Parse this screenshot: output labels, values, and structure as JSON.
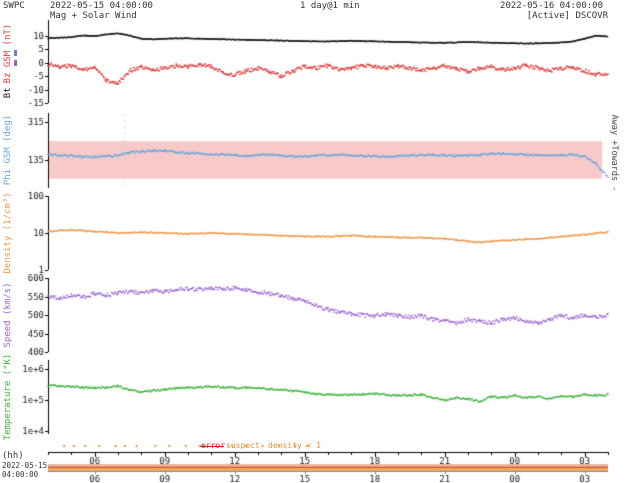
{
  "header": {
    "source": "SWPC",
    "start_time": "2022-05-15 04:00:00",
    "resolution": "1 day@1 min",
    "end_time": "2022-05-16 04:00:00",
    "product": "Mag + Solar Wind",
    "satellite": "[Active] DSCOVR"
  },
  "x_axis": {
    "label": "(hh)",
    "ticks": [
      "06",
      "09",
      "12",
      "15",
      "18",
      "21",
      "00",
      "03"
    ],
    "hours": [
      6,
      9,
      12,
      15,
      18,
      21,
      24,
      27
    ],
    "range_hours": [
      4,
      28
    ]
  },
  "footer": {
    "date": "2022-05-15",
    "time": "04:00:00"
  },
  "flags": {
    "color": "#e8912f",
    "hours": [
      4.7,
      5.1,
      5.6,
      6.2,
      6.9,
      7.3,
      7.8,
      8.6,
      9.2,
      9.9,
      10.5,
      11.2,
      11.9,
      12.5,
      13.2,
      13.9,
      14.6,
      15.1
    ],
    "legend": [
      {
        "label": "error",
        "color": "#cc2222"
      },
      {
        "label": "suspect",
        "color": "#e8912f"
      },
      {
        "label": "density < 1",
        "color": "#e8912f"
      }
    ]
  },
  "panel1_markers": [
    {
      "name": "by",
      "color": "#6b7fd7"
    },
    {
      "name": "bx",
      "color": "#b05fb0"
    }
  ],
  "chart_data": [
    {
      "type": "scatter",
      "panel": "magnetic-field",
      "label_bt": "Bt",
      "label_bz": "Bz GSM (nT)",
      "yscale": "linear",
      "ylim": [
        -15,
        16
      ],
      "yticks": [
        {
          "v": 10,
          "label": "10"
        },
        {
          "v": 5,
          "label": "5"
        },
        {
          "v": 0,
          "label": "0"
        },
        {
          "v": -5,
          "label": "-5"
        },
        {
          "v": -10,
          "label": "-10"
        },
        {
          "v": -15,
          "label": "-15"
        }
      ],
      "series": [
        {
          "name": "Bt",
          "color": "#1a1a1a",
          "start": 4,
          "step_h": 0.5,
          "jitter": 0.15,
          "size": 1.2,
          "substep": 0.0167,
          "values": [
            9.2,
            9.4,
            9.6,
            10.2,
            10.0,
            10.6,
            11.0,
            10.2,
            9.0,
            8.8,
            9.0,
            9.1,
            9.2,
            9.0,
            8.9,
            8.8,
            8.7,
            8.6,
            8.5,
            8.4,
            8.3,
            8.2,
            8.1,
            8.0,
            8.0,
            8.1,
            8.2,
            8.1,
            8.0,
            7.9,
            7.8,
            7.7,
            7.6,
            7.5,
            7.5,
            7.6,
            7.8,
            7.7,
            7.5,
            7.4,
            7.3,
            7.2,
            7.3,
            7.4,
            7.6,
            8.0,
            9.0,
            10.2,
            9.8
          ]
        },
        {
          "name": "Bz",
          "color": "#e03a3a",
          "start": 4,
          "step_h": 0.5,
          "jitter": 0.7,
          "size": 1.6,
          "substep": 0.045,
          "values": [
            -0.5,
            -1.5,
            -1.0,
            -2.5,
            -2.0,
            -6.5,
            -7.5,
            -3.0,
            -1.5,
            -2.5,
            -2.0,
            -1.0,
            -1.5,
            -0.5,
            -1.5,
            -3.5,
            -4.5,
            -3.0,
            -2.0,
            -3.5,
            -5.0,
            -3.0,
            -1.5,
            -2.0,
            -1.0,
            -2.5,
            -2.0,
            -1.0,
            -1.5,
            -2.0,
            -1.0,
            -2.0,
            -3.0,
            -2.0,
            -1.0,
            -2.0,
            -3.5,
            -2.0,
            -1.5,
            -2.5,
            -2.0,
            -1.0,
            -2.0,
            -3.0,
            -2.0,
            -1.5,
            -3.0,
            -4.5,
            -4.0
          ]
        }
      ]
    },
    {
      "type": "scatter",
      "panel": "phi-angle",
      "ylabel": "Phi GSM (deg)",
      "right_label": "Away +Towards -",
      "yscale": "linear",
      "ylim": [
        0,
        360
      ],
      "yticks": [
        {
          "v": 315,
          "label": "315"
        },
        {
          "v": 135,
          "label": "135"
        }
      ],
      "band": {
        "range": [
          45,
          225
        ],
        "color": "#f7c9c9",
        "x_end": 27.75
      },
      "series": [
        {
          "name": "Phi",
          "color": "#64a8dc",
          "start": 4,
          "step_h": 0.5,
          "jitter": 4.5,
          "size": 1.5,
          "substep": 0.045,
          "values": [
            162,
            158,
            155,
            150,
            148,
            152,
            156,
            170,
            175,
            178,
            180,
            172,
            168,
            165,
            162,
            160,
            158,
            155,
            158,
            160,
            155,
            150,
            152,
            155,
            158,
            160,
            157,
            154,
            152,
            150,
            153,
            156,
            158,
            160,
            157,
            154,
            156,
            160,
            163,
            165,
            162,
            160,
            157,
            155,
            158,
            160,
            150,
            115,
            50
          ]
        },
        {
          "name": "Phi-spike",
          "color": "#a8d4ee",
          "no_interp": true,
          "size": 1.3,
          "x": [
            7.3,
            7.3,
            7.3,
            7.3,
            7.3,
            7.3,
            7.3,
            7.3,
            7.3,
            7.3,
            7.3,
            7.3
          ],
          "values": [
            20,
            50,
            80,
            110,
            140,
            170,
            200,
            230,
            260,
            290,
            320,
            350
          ]
        }
      ]
    },
    {
      "type": "scatter",
      "panel": "density",
      "ylabel": "Density (1/cm³)",
      "yscale": "log",
      "ylim": [
        1,
        100
      ],
      "yticks": [
        {
          "v": 100,
          "label": "100"
        },
        {
          "v": 10,
          "label": "10"
        },
        {
          "v": 1,
          "label": "1"
        }
      ],
      "series": [
        {
          "name": "Density",
          "color": "#ef9849",
          "start": 4,
          "step_h": 0.5,
          "jitter": 0.016,
          "size": 1.5,
          "substep": 0.045,
          "values": [
            11,
            11.5,
            12,
            11.5,
            11,
            10.5,
            10,
            10.2,
            10.5,
            10.2,
            10,
            9.8,
            9.5,
            9.8,
            10,
            9.7,
            9.5,
            9.2,
            9,
            8.8,
            8.5,
            8.2,
            8,
            8,
            8,
            8.2,
            8.5,
            8.2,
            8,
            7.8,
            7.5,
            7.5,
            7.5,
            7.2,
            7,
            6.5,
            6,
            5.5,
            6,
            6.2,
            6.5,
            6.8,
            7,
            7.5,
            8,
            8.5,
            9,
            9.8,
            10.5
          ]
        }
      ]
    },
    {
      "type": "scatter",
      "panel": "speed",
      "ylabel": "Speed (km/s)",
      "yscale": "linear",
      "ylim": [
        400,
        600
      ],
      "yticks": [
        {
          "v": 600,
          "label": "600"
        },
        {
          "v": 550,
          "label": "550"
        },
        {
          "v": 500,
          "label": "500"
        },
        {
          "v": 450,
          "label": "450"
        },
        {
          "v": 400,
          "label": "400"
        }
      ],
      "series": [
        {
          "name": "Speed",
          "color": "#9a63d2",
          "start": 4,
          "step_h": 0.5,
          "jitter": 5,
          "size": 1.5,
          "substep": 0.045,
          "values": [
            550,
            545,
            552,
            548,
            558,
            554,
            560,
            563,
            558,
            566,
            562,
            568,
            572,
            569,
            574,
            570,
            572,
            567,
            563,
            558,
            552,
            545,
            538,
            525,
            515,
            508,
            503,
            500,
            498,
            502,
            499,
            494,
            498,
            488,
            483,
            478,
            488,
            483,
            479,
            488,
            493,
            484,
            479,
            489,
            498,
            493,
            499,
            494,
            500
          ]
        }
      ]
    },
    {
      "type": "scatter",
      "panel": "temperature",
      "ylabel": "Temperature (°K)",
      "yscale": "log",
      "ylim": [
        8000,
        2000000
      ],
      "yticks": [
        {
          "v": 1000000,
          "label": "1e+6"
        },
        {
          "v": 100000,
          "label": "1e+5"
        },
        {
          "v": 10000,
          "label": "1e+4"
        }
      ],
      "series": [
        {
          "name": "Temperature",
          "color": "#3cb43c",
          "start": 4,
          "step_h": 0.5,
          "jitter": 0.03,
          "size": 1.5,
          "substep": 0.045,
          "values": [
            300000,
            290000,
            280000,
            260000,
            250000,
            260000,
            280000,
            220000,
            180000,
            200000,
            220000,
            240000,
            250000,
            260000,
            280000,
            260000,
            250000,
            250000,
            250000,
            230000,
            220000,
            200000,
            180000,
            160000,
            150000,
            150000,
            150000,
            155000,
            160000,
            150000,
            140000,
            145000,
            150000,
            120000,
            100000,
            120000,
            110000,
            90000,
            130000,
            120000,
            140000,
            120000,
            130000,
            110000,
            140000,
            130000,
            150000,
            140000,
            150000
          ]
        }
      ]
    }
  ]
}
